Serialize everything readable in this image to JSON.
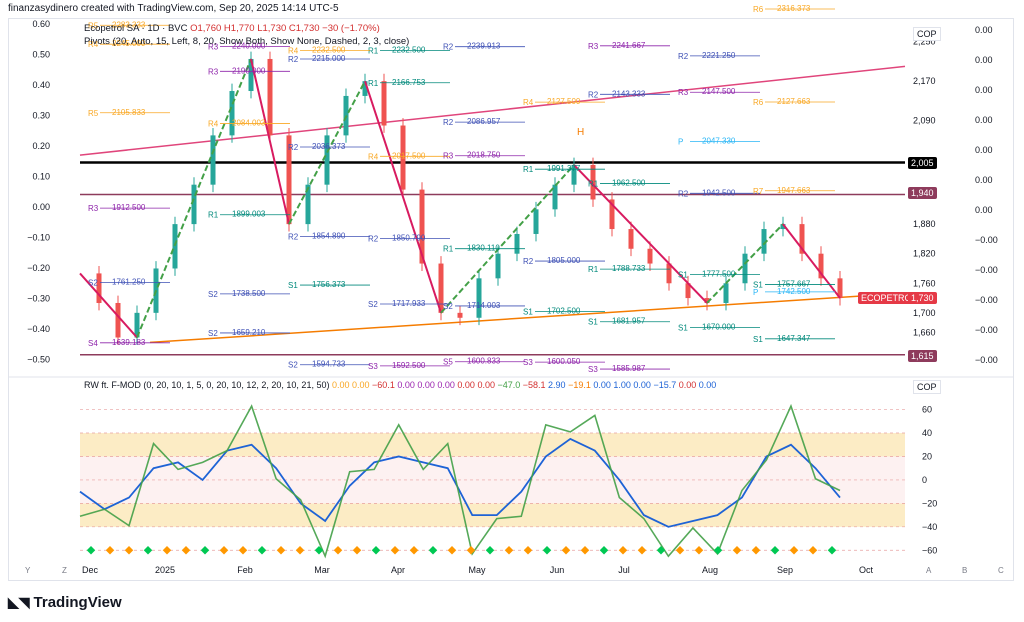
{
  "header": {
    "text": "finanzasydinero created with TradingView.com, Sep 20, 2025 14:14 UTC-5"
  },
  "legend": {
    "symbol": "Ecopetrol SA · 1D · BVC",
    "ohlc": "O1,760 H1,770 L1,730 C1,730 −30 (−1.70%)",
    "pivots": "Pivots (20, Auto, 15, Left, 8, 20, Show Both, Show None, Dashed, 2, 3, close)"
  },
  "osc_legend": {
    "name": "RW ft. F-MOD (0, 20, 10, 1, 5, 0, 20, 10, 12, 2, 20, 10, 21, 50)",
    "values": [
      "0.00",
      "0.00",
      "−60.1",
      "0.00",
      "0.00",
      "0.00",
      "0.00",
      "0.00",
      "−47.0",
      "−58.1",
      "2.90",
      "−19.1",
      "0.00",
      "1.00",
      "0.00",
      "−15.7",
      "0.00",
      "0.00"
    ]
  },
  "currency": "COP",
  "price_axis": [
    "2,250",
    "2,170",
    "2,090",
    "2,005",
    "1,940",
    "1,880",
    "1,820",
    "1,760",
    "1,730",
    "1,700",
    "1,660",
    "1,615"
  ],
  "badges": {
    "b2005": "2,005",
    "b1940": "1,940",
    "b1730": "1,730",
    "b1615": "1,615",
    "ecopetrol": "ECOPETROL"
  },
  "left_axis": [
    "0.60",
    "0.50",
    "0.40",
    "0.30",
    "0.20",
    "0.10",
    "0.00",
    "−0.10",
    "−0.20",
    "−0.30",
    "−0.40",
    "−0.50"
  ],
  "right_axis": [
    "0.00",
    "0.00",
    "0.00",
    "0.00",
    "0.00",
    "0.00",
    "0.00",
    "−0.00",
    "−0.00",
    "−0.00",
    "−0.00",
    "−0.00"
  ],
  "osc_axis": [
    "60",
    "40",
    "20",
    "0",
    "−20",
    "−40",
    "−60"
  ],
  "time_axis": [
    "Dec",
    "2025",
    "Feb",
    "Mar",
    "Apr",
    "May",
    "Jun",
    "Jul",
    "Aug",
    "Sep",
    "Oct"
  ],
  "corner_letters": [
    "Y",
    "Z",
    "A",
    "B",
    "C"
  ],
  "footer": {
    "brand": "TradingView"
  },
  "pivot_labels": [
    {
      "t": "R4",
      "v": "2245.000"
    },
    {
      "t": "R3",
      "v": "2190.000"
    },
    {
      "t": "R2",
      "v": "2215.000"
    },
    {
      "t": "R1",
      "v": "2232.500"
    },
    {
      "t": "R2",
      "v": "2239.913"
    },
    {
      "t": "R3",
      "v": "2347.500"
    },
    {
      "t": "R3",
      "v": "2241.667"
    },
    {
      "t": "R2",
      "v": "2221.250"
    },
    {
      "t": "R6",
      "v": "2316.373"
    },
    {
      "t": "R5",
      "v": "2283.333"
    },
    {
      "t": "R3",
      "v": "2240.000"
    },
    {
      "t": "R4",
      "v": "2232.500"
    },
    {
      "t": "R1",
      "v": "2166.753"
    },
    {
      "t": "R2",
      "v": "2086.957"
    },
    {
      "t": "R4",
      "v": "2127.500"
    },
    {
      "t": "R2",
      "v": "2143.333"
    },
    {
      "t": "R3",
      "v": "2147.500"
    },
    {
      "t": "R6",
      "v": "2127.663"
    },
    {
      "t": "R5",
      "v": "2105.833"
    },
    {
      "t": "R4",
      "v": "2084.003"
    },
    {
      "t": "R2",
      "v": "2036.373"
    },
    {
      "t": "R4",
      "v": "2017.500"
    },
    {
      "t": "R3",
      "v": "2018.750"
    },
    {
      "t": "R1",
      "v": "1991.377"
    },
    {
      "t": "R1",
      "v": "1962.500"
    },
    {
      "t": "R2",
      "v": "1942.500"
    },
    {
      "t": "R7",
      "v": "1947.663"
    },
    {
      "t": "R3",
      "v": "1912.500"
    },
    {
      "t": "R1",
      "v": "1899.003"
    },
    {
      "t": "R2",
      "v": "1854.890"
    },
    {
      "t": "R2",
      "v": "1850.790"
    },
    {
      "t": "R1",
      "v": "1830.110"
    },
    {
      "t": "R2",
      "v": "1805.000"
    },
    {
      "t": "R1",
      "v": "1788.733"
    },
    {
      "t": "S1",
      "v": "1777.500"
    },
    {
      "t": "S1",
      "v": "1757.667"
    },
    {
      "t": "S2",
      "v": "1761.250"
    },
    {
      "t": "S2",
      "v": "1738.500"
    },
    {
      "t": "S1",
      "v": "1756.373"
    },
    {
      "t": "S2",
      "v": "1717.933"
    },
    {
      "t": "S2",
      "v": "1714.003"
    },
    {
      "t": "S1",
      "v": "1702.500"
    },
    {
      "t": "S1",
      "v": "1681.957"
    },
    {
      "t": "S1",
      "v": "1670.000"
    },
    {
      "t": "S1",
      "v": "1647.347"
    },
    {
      "t": "S4",
      "v": "1639.183"
    },
    {
      "t": "S2",
      "v": "1659.210"
    },
    {
      "t": "S2",
      "v": "1594.733"
    },
    {
      "t": "S3",
      "v": "1592.500"
    },
    {
      "t": "S5",
      "v": "1600.833"
    },
    {
      "t": "S3",
      "v": "1600.050"
    },
    {
      "t": "S3",
      "v": "1585.987"
    },
    {
      "t": "P",
      "v": "2047.330"
    },
    {
      "t": "P",
      "v": "1742.500"
    }
  ],
  "chart_data": {
    "type": "candlestick",
    "symbol": "Ecopetrol SA",
    "interval": "1D",
    "exchange": "BVC",
    "currency": "COP",
    "last": {
      "open": 1760,
      "high": 1770,
      "low": 1730,
      "close": 1730,
      "change": -30,
      "change_pct": -1.7
    },
    "ylim": [
      1580,
      2290
    ],
    "x": [
      "Dec",
      "2025",
      "Feb",
      "Mar",
      "Apr",
      "May",
      "Jun",
      "Jul",
      "Aug",
      "Sep",
      "Oct"
    ],
    "close_path": [
      1780,
      1720,
      1650,
      1700,
      1790,
      1880,
      1960,
      2060,
      2150,
      2215,
      2060,
      1880,
      1960,
      2060,
      2140,
      2170,
      2080,
      1950,
      1800,
      1700,
      1690,
      1770,
      1820,
      1860,
      1910,
      1960,
      2000,
      1930,
      1870,
      1830,
      1800,
      1760,
      1730,
      1720,
      1760,
      1820,
      1870,
      1880,
      1820,
      1770,
      1730
    ],
    "horizontal_levels": [
      2005,
      1940,
      1615
    ],
    "oscillator": {
      "ylim": [
        -70,
        75
      ],
      "bands": [
        [
          20,
          40
        ],
        [
          -40,
          -20
        ]
      ],
      "blue_line": [
        -10,
        -25,
        -15,
        10,
        15,
        0,
        25,
        30,
        10,
        -20,
        -35,
        -5,
        15,
        20,
        15,
        10,
        -30,
        -30,
        -10,
        20,
        35,
        25,
        0,
        -30,
        -40,
        -35,
        -30,
        -15,
        20,
        30,
        10,
        -15
      ]
    }
  }
}
